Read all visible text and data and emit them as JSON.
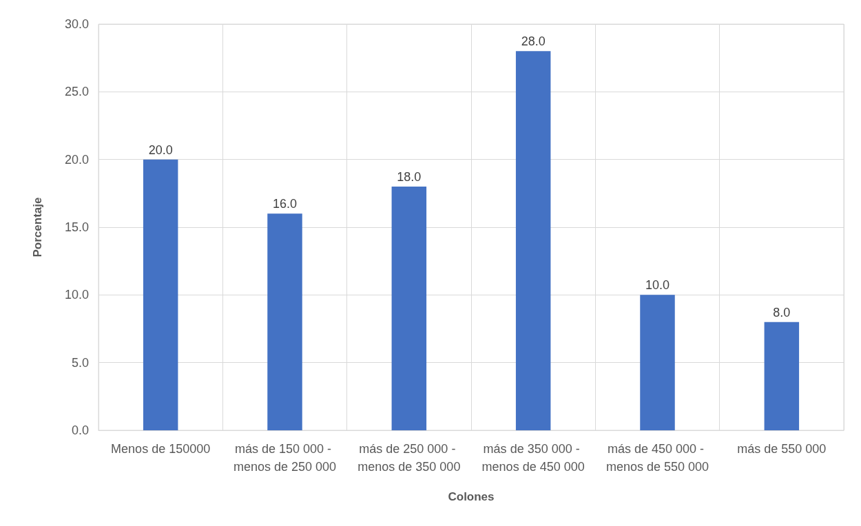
{
  "chart_data": {
    "type": "bar",
    "xlabel": "Colones",
    "ylabel": "Porcentaje",
    "categories": [
      "Menos de 150000",
      "más de 150 000 - menos de 250 000",
      "más de 250 000 - menos de 350 000",
      "más de 350 000 - menos de 450 000",
      "más de 450 000 - menos de 550 000",
      "más de 550 000"
    ],
    "values": [
      20,
      16,
      18,
      28,
      10,
      8
    ],
    "value_labels": [
      "20.0",
      "16.0",
      "18.0",
      "28.0",
      "10.0",
      "8.0"
    ],
    "color": "#4472c4",
    "ylim": [
      0,
      30
    ],
    "yticks": [
      {
        "value": 0,
        "label": "0.0"
      },
      {
        "value": 5,
        "label": "5.0"
      },
      {
        "value": 10,
        "label": "10.0"
      },
      {
        "value": 15,
        "label": "15.0"
      },
      {
        "value": 20,
        "label": "20.0"
      },
      {
        "value": 25,
        "label": "25.0"
      },
      {
        "value": 30,
        "label": "30.0"
      }
    ],
    "grid": true
  }
}
